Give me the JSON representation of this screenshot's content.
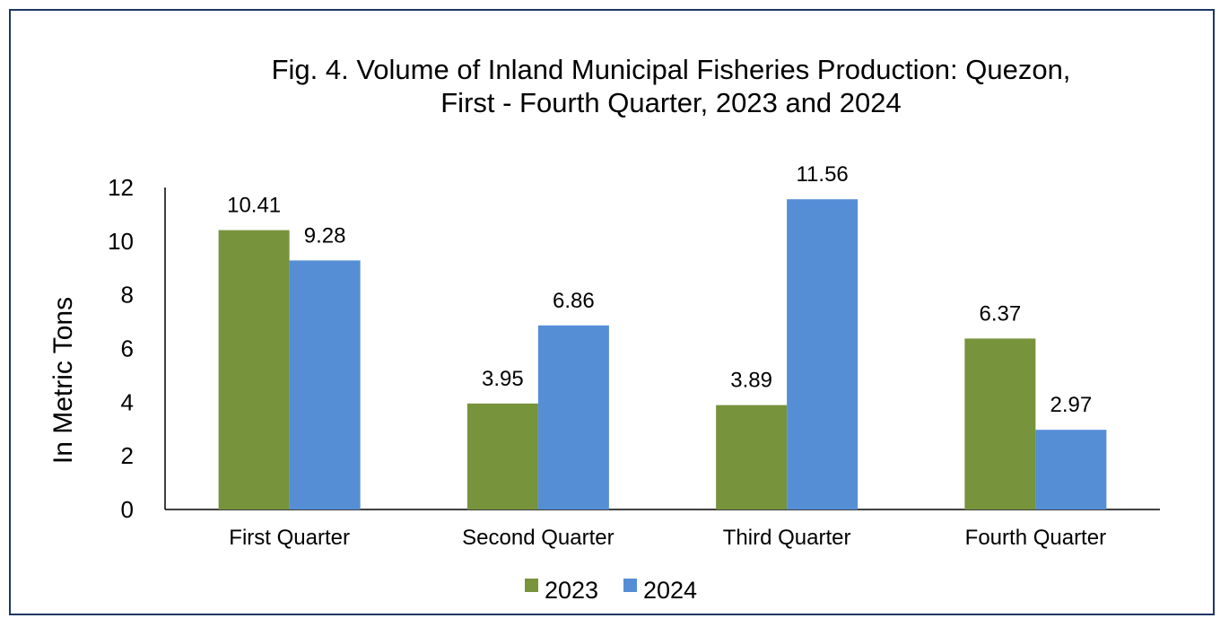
{
  "chart_data": {
    "type": "bar",
    "title_lines": [
      "Fig. 4. Volume of Inland  Municipal Fisheries  Production: Quezon,",
      "First - Fourth Quarter, 2023 and 2024"
    ],
    "ylabel": "In Metric Tons",
    "xlabel": "",
    "ylim": [
      0,
      12
    ],
    "yticks": [
      0,
      2,
      4,
      6,
      8,
      10,
      12
    ],
    "grid": false,
    "legend_position": "bottom",
    "categories": [
      "First Quarter",
      "Second Quarter",
      "Third Quarter",
      "Fourth Quarter"
    ],
    "series": [
      {
        "name": "2023",
        "color": "#77933c",
        "values": [
          10.41,
          3.95,
          3.89,
          6.37
        ],
        "labels": [
          "10.41",
          "3.95",
          "3.89",
          "6.37"
        ]
      },
      {
        "name": "2024",
        "color": "#558ed5",
        "values": [
          9.28,
          6.86,
          11.56,
          2.97
        ],
        "labels": [
          "9.28",
          "6.86",
          "11.56",
          "2.97"
        ]
      }
    ]
  }
}
